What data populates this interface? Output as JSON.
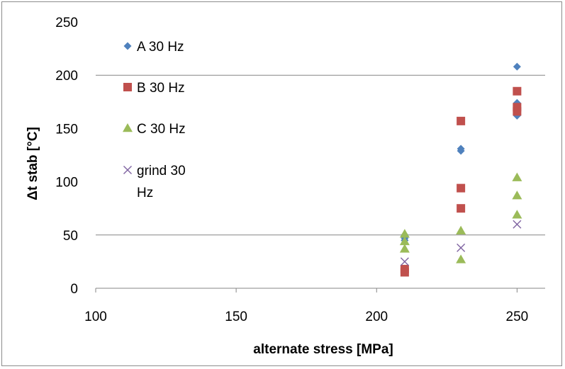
{
  "chart_data": {
    "type": "scatter",
    "xlabel": "alternate stress [MPa]",
    "ylabel": "Δt stab [°C]",
    "xlim": [
      100,
      260
    ],
    "ylim": [
      0,
      250
    ],
    "x_ticks": [
      100,
      150,
      200,
      250
    ],
    "y_ticks": [
      0,
      50,
      100,
      150,
      200,
      250
    ],
    "grid": "horizontal at 50 and 200",
    "legend_position": "top-left",
    "series": [
      {
        "name": "A 30 Hz",
        "marker": "diamond",
        "color": "#4f81bd",
        "points": [
          [
            210,
            50
          ],
          [
            210,
            47
          ],
          [
            210,
            45
          ],
          [
            230,
            131
          ],
          [
            230,
            129
          ],
          [
            250,
            208
          ],
          [
            250,
            174
          ],
          [
            250,
            162
          ]
        ]
      },
      {
        "name": "B 30 Hz",
        "marker": "square",
        "color": "#c0504d",
        "points": [
          [
            210,
            18
          ],
          [
            210,
            15
          ],
          [
            230,
            157
          ],
          [
            230,
            94
          ],
          [
            230,
            75
          ],
          [
            250,
            185
          ],
          [
            250,
            170
          ],
          [
            250,
            166
          ]
        ]
      },
      {
        "name": "C 30 Hz",
        "marker": "triangle",
        "color": "#9bbb59",
        "points": [
          [
            210,
            51
          ],
          [
            210,
            44
          ],
          [
            210,
            37
          ],
          [
            230,
            54
          ],
          [
            230,
            27
          ],
          [
            250,
            104
          ],
          [
            250,
            87
          ],
          [
            250,
            69
          ]
        ]
      },
      {
        "name_lines": [
          "grind 30",
          "Hz"
        ],
        "marker": "x",
        "color": "#8064a2",
        "points": [
          [
            210,
            25
          ],
          [
            230,
            38
          ],
          [
            250,
            60
          ]
        ]
      }
    ]
  }
}
